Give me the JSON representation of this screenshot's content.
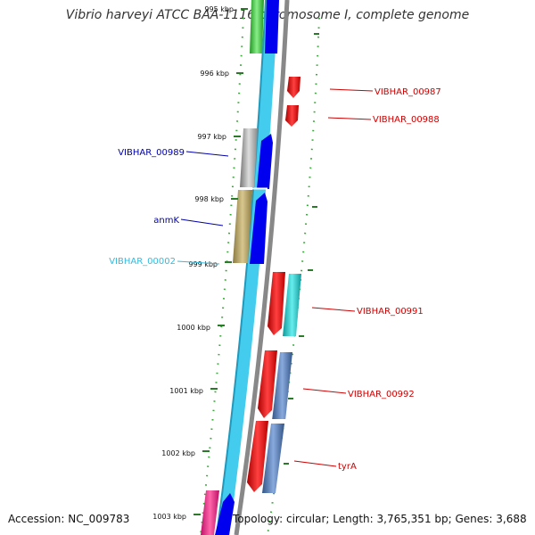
{
  "title": "Vibrio harveyi ATCC BAA-1116 chromosome I, complete genome",
  "footer": {
    "accession": "Accession: NC_009783",
    "summary": "Topology: circular; Length: 3,765,351 bp; Genes: 3,688"
  },
  "ticks": [
    {
      "label": "995 kbp"
    },
    {
      "label": "996 kbp"
    },
    {
      "label": "997 kbp"
    },
    {
      "label": "998 kbp"
    },
    {
      "label": "999 kbp"
    },
    {
      "label": "1000 kbp"
    },
    {
      "label": "1001 kbp"
    },
    {
      "label": "1002 kbp"
    },
    {
      "label": "1003 kbp"
    }
  ],
  "genes": [
    {
      "label": "VIBHAR_00987",
      "color": "#cc0000",
      "strand": "forward"
    },
    {
      "label": "VIBHAR_00988",
      "color": "#cc0000",
      "strand": "forward"
    },
    {
      "label": "VIBHAR_00989",
      "color": "#0000aa",
      "strand": "reverse"
    },
    {
      "label": "anmK",
      "color": "#0000aa",
      "strand": "reverse"
    },
    {
      "label": "VIBHAR_00002",
      "color": "#33bbdd",
      "strand": "reverse"
    },
    {
      "label": "VIBHAR_00991",
      "color": "#cc0000",
      "strand": "forward"
    },
    {
      "label": "VIBHAR_00992",
      "color": "#cc0000",
      "strand": "forward"
    },
    {
      "label": "tyrA",
      "color": "#cc0000",
      "strand": "forward"
    }
  ],
  "colors": {
    "backbone": "#888888",
    "dots": "#33aa33",
    "tick": "#2a7a2a",
    "gc_light": "#44ccee",
    "cds_blue": "#0000ee",
    "cds_red": "#ee0000",
    "cds_grey": "#aaaaaa",
    "cds_olive": "#b0a060",
    "cds_cyan": "#22cccc",
    "cds_steel": "#4477aa",
    "cds_green": "#33bb33",
    "cds_magenta": "#ee2288"
  }
}
